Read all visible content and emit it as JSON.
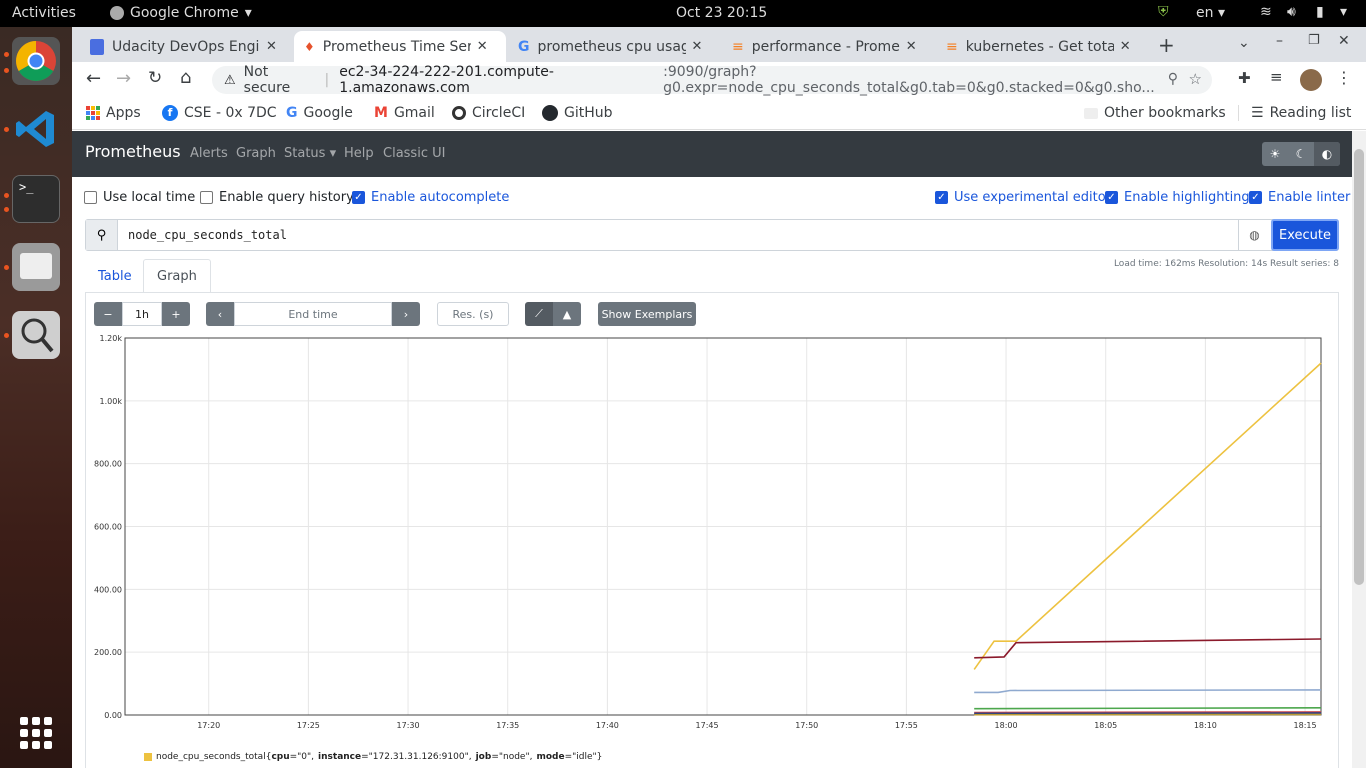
{
  "system": {
    "activities": "Activities",
    "app_name": "Google Chrome",
    "clock": "Oct 23  20:15",
    "lang": "en"
  },
  "tabs": [
    {
      "title": "Udacity DevOps Engin"
    },
    {
      "title": "Prometheus Time Seri"
    },
    {
      "title": "prometheus cpu usag"
    },
    {
      "title": "performance - Promet"
    },
    {
      "title": "kubernetes - Get total"
    }
  ],
  "omnibox": {
    "security": "Not secure",
    "host": "ec2-34-224-222-201.compute-1.amazonaws.com",
    "path": ":9090/graph?g0.expr=node_cpu_seconds_total&g0.tab=0&g0.stacked=0&g0.sho..."
  },
  "bookmarks": [
    {
      "label": "Apps"
    },
    {
      "label": "CSE - 0x 7DC"
    },
    {
      "label": "Google"
    },
    {
      "label": "Gmail"
    },
    {
      "label": "CircleCI"
    },
    {
      "label": "GitHub"
    }
  ],
  "bookmarks_right": {
    "other": "Other bookmarks",
    "reading": "Reading list"
  },
  "prom": {
    "brand": "Prometheus",
    "nav": [
      "Alerts",
      "Graph",
      "Status",
      "Help",
      "Classic UI"
    ],
    "options": {
      "local_time": "Use local time",
      "query_history": "Enable query history",
      "autocomplete": "Enable autocomplete",
      "experimental": "Use experimental editor",
      "highlighting": "Enable highlighting",
      "linter": "Enable linter"
    },
    "expression": "node_cpu_seconds_total",
    "execute": "Execute",
    "stats": "Load time: 162ms    Resolution: 14s    Result series: 8",
    "tabs": {
      "table": "Table",
      "graph": "Graph"
    },
    "controls": {
      "range": "1h",
      "end_time_placeholder": "End time",
      "res_placeholder": "Res. (s)",
      "exemplars": "Show Exemplars"
    },
    "legend": {
      "metric": "node_cpu_seconds_total",
      "labels_open": "{",
      "k1": "cpu",
      "v1": "=\"0\", ",
      "k2": "instance",
      "v2": "=\"172.31.31.126:9100\", ",
      "k3": "job",
      "v3": "=\"node\", ",
      "k4": "mode",
      "v4": "=\"idle\"}",
      "color": "#edc240"
    }
  },
  "chart_data": {
    "type": "line",
    "y_tick_labels": [
      "0.00",
      "200.00",
      "400.00",
      "600.00",
      "800.00",
      "1.00k",
      "1.20k"
    ],
    "x_tick_labels": [
      "17:20",
      "17:25",
      "17:30",
      "17:35",
      "17:40",
      "17:45",
      "17:50",
      "17:55",
      "18:00",
      "18:05",
      "18:10",
      "18:15"
    ],
    "x_ticks_minutes": [
      20,
      25,
      30,
      35,
      40,
      45,
      50,
      55,
      60,
      65,
      70,
      75
    ],
    "xlim_minutes": [
      15.8,
      75.8
    ],
    "ylim": [
      0,
      1200
    ],
    "grid": true,
    "series": [
      {
        "color": "#edc240",
        "points": [
          [
            58.4,
            145
          ],
          [
            59.4,
            235
          ],
          [
            60.5,
            235
          ],
          [
            75.8,
            1120
          ]
        ]
      },
      {
        "color": "#8b1a2b",
        "points": [
          [
            58.4,
            182
          ],
          [
            59.9,
            185
          ],
          [
            60.5,
            230
          ],
          [
            75.8,
            242
          ]
        ]
      },
      {
        "color": "#8fa9cf",
        "points": [
          [
            58.4,
            72
          ],
          [
            59.6,
            72
          ],
          [
            60.2,
            78
          ],
          [
            75.8,
            80
          ]
        ]
      },
      {
        "color": "#4da74d",
        "points": [
          [
            58.4,
            20
          ],
          [
            75.8,
            23
          ]
        ]
      },
      {
        "color": "#9440ed",
        "points": [
          [
            58.4,
            3
          ],
          [
            75.8,
            4
          ]
        ]
      },
      {
        "color": "#cb4b4b",
        "points": [
          [
            58.4,
            8
          ],
          [
            75.8,
            10
          ]
        ]
      },
      {
        "color": "#1e3a8a",
        "points": [
          [
            58.4,
            5
          ],
          [
            75.8,
            6
          ]
        ]
      },
      {
        "color": "#bd9b33",
        "points": [
          [
            58.4,
            1
          ],
          [
            75.8,
            2
          ]
        ]
      }
    ]
  }
}
